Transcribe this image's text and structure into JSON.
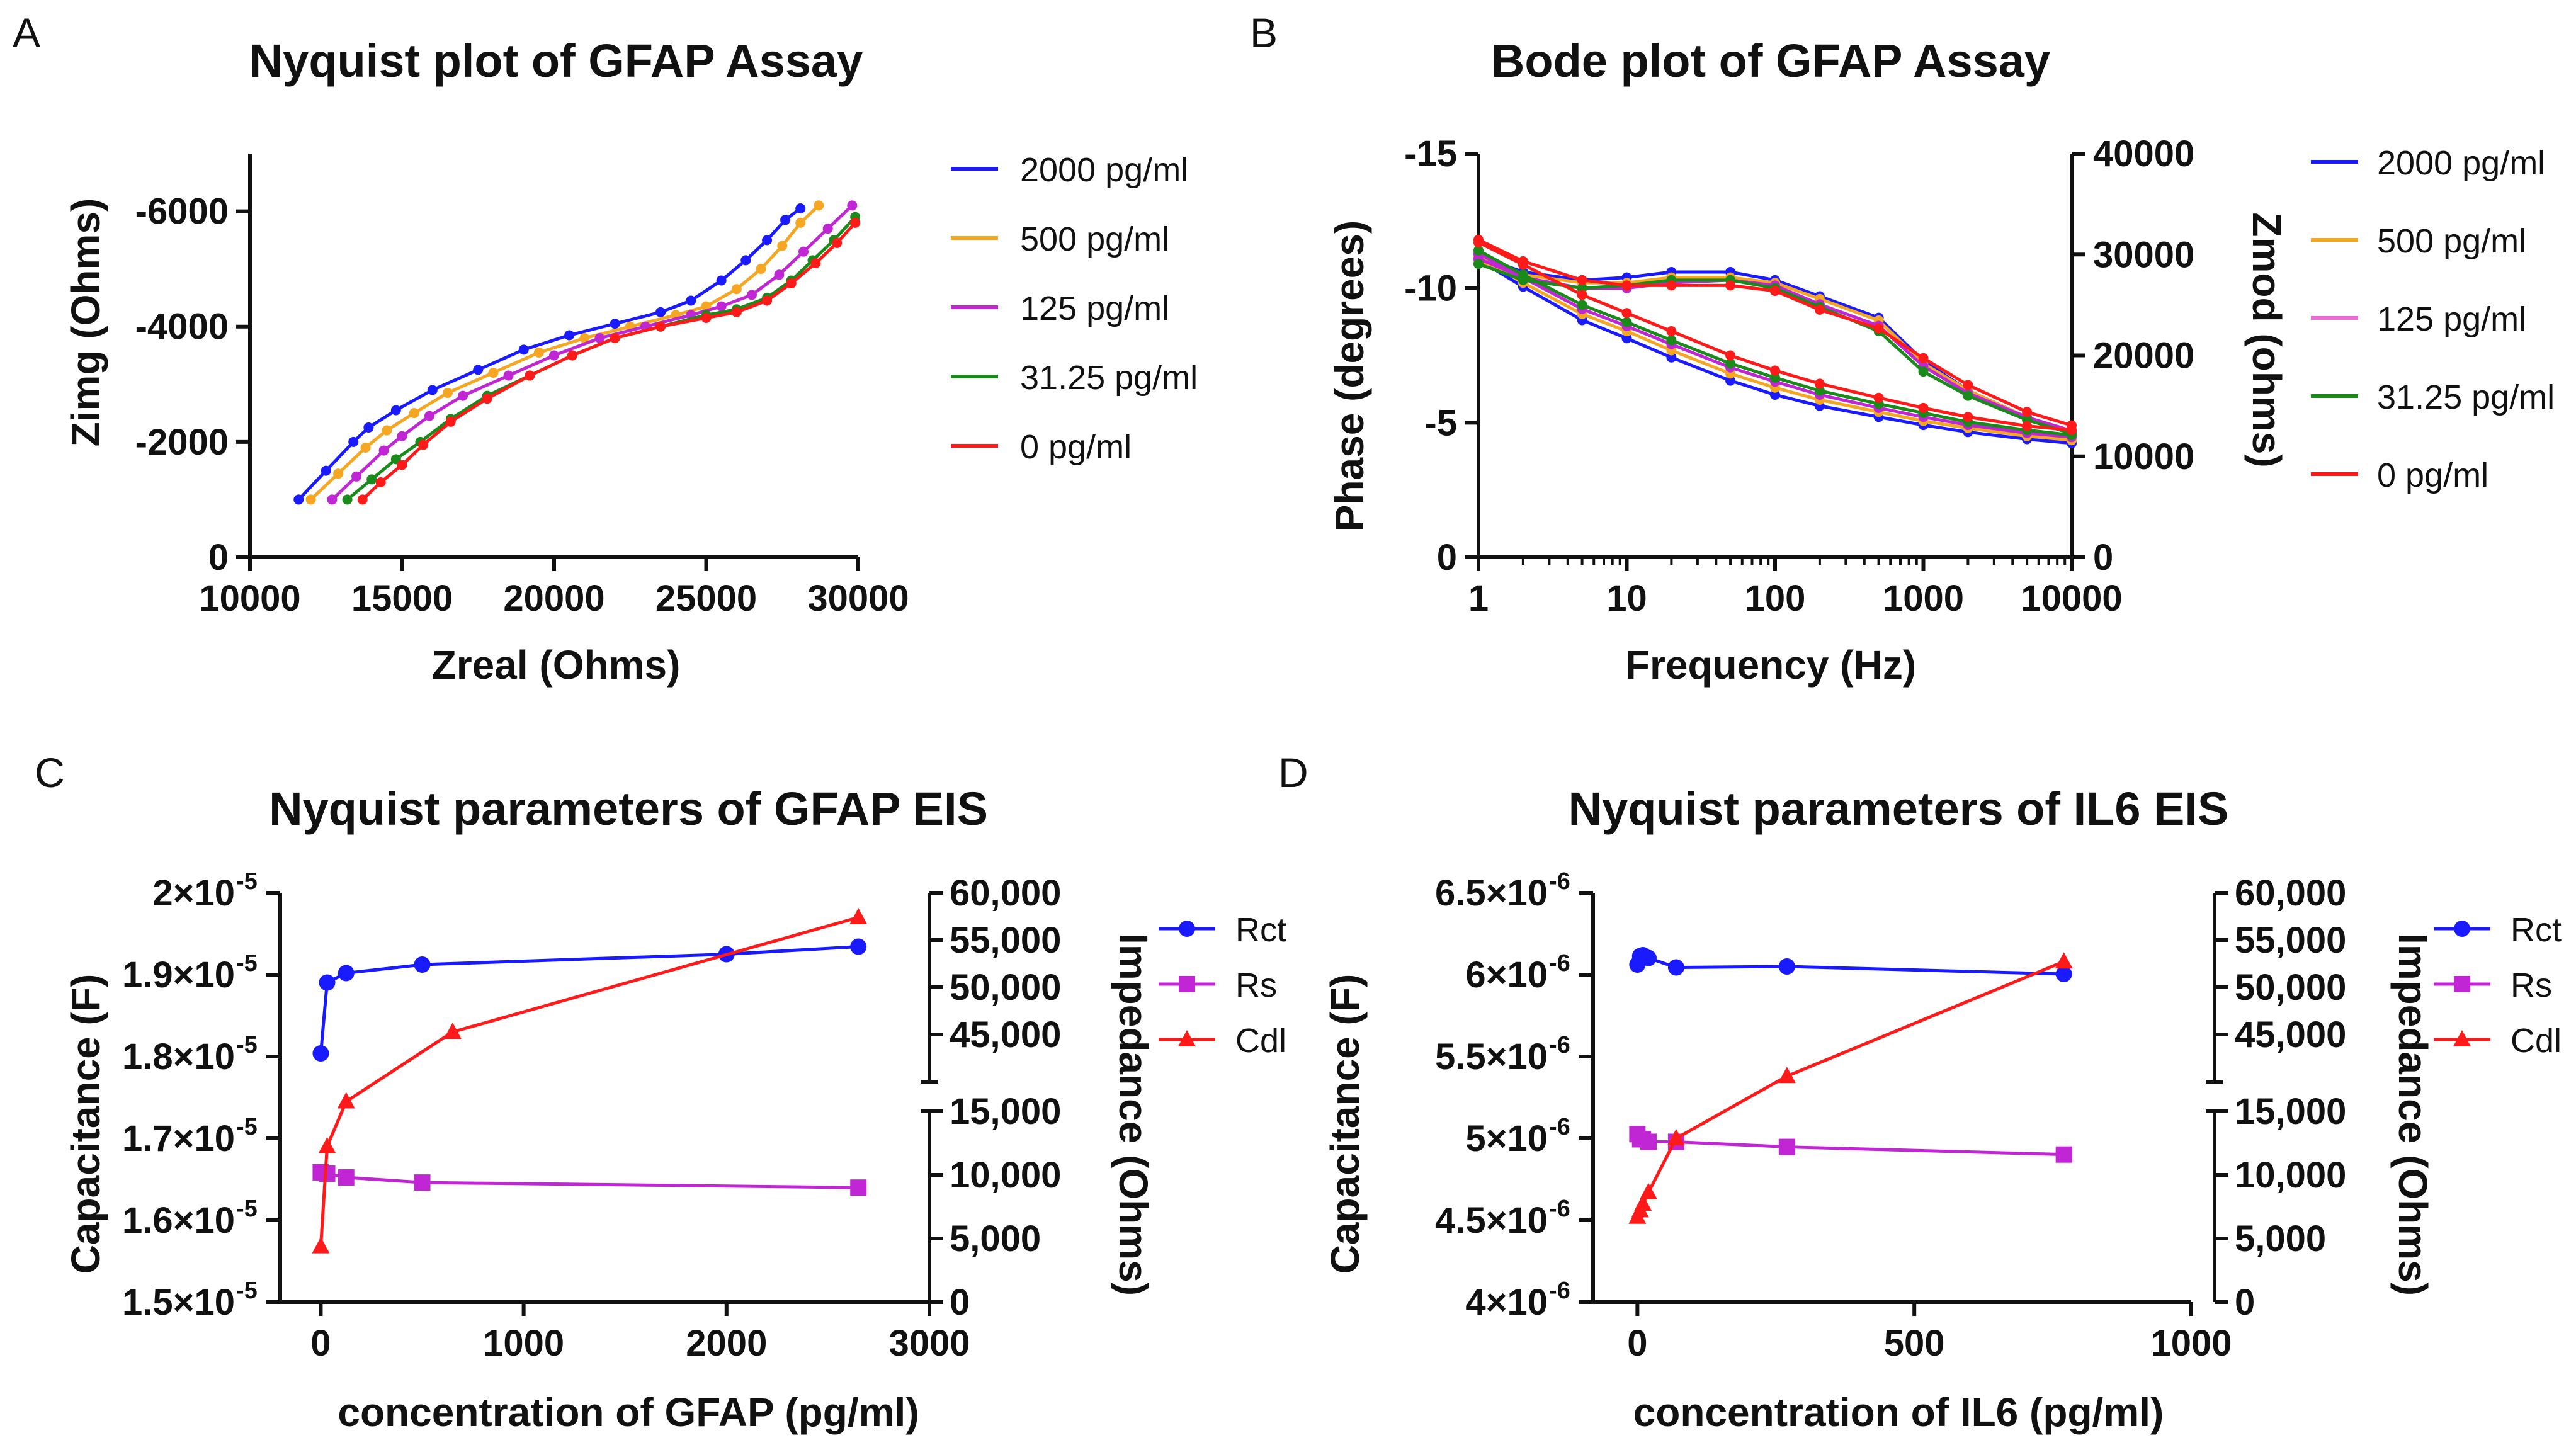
{
  "colors": {
    "blue": "#1a1aff",
    "orange": "#f5a623",
    "magenta": "#c026d3",
    "green": "#1a8a1a",
    "red": "#ff1a1a",
    "peach": "#f7b97a",
    "pink": "#ec6bd8"
  },
  "chart_data": [
    {
      "panel": "A",
      "type": "scatter",
      "title": "Nyquist plot of GFAP Assay",
      "xlabel": "Zreal (Ohms)",
      "ylabel": "Zimg (Ohms)",
      "xlim": [
        10000,
        30000
      ],
      "ylim": [
        0,
        -7000
      ],
      "xticks": [
        "10000",
        "15000",
        "20000",
        "25000",
        "30000"
      ],
      "yticks": [
        "0",
        "-2000",
        "-4000",
        "-6000"
      ],
      "legend": [
        "2000 pg/ml",
        "500 pg/ml",
        "125 pg/ml",
        "31.25 pg/ml",
        "0 pg/ml"
      ],
      "series": [
        {
          "name": "2000 pg/ml",
          "color": "#1a1aff",
          "x": [
            11600,
            12500,
            13400,
            13900,
            14800,
            16000,
            17500,
            19000,
            20500,
            22000,
            23500,
            24500,
            25500,
            26300,
            27000,
            27600,
            28100
          ],
          "y": [
            -1000,
            -1500,
            -2000,
            -2250,
            -2550,
            -2900,
            -3250,
            -3600,
            -3850,
            -4050,
            -4250,
            -4450,
            -4800,
            -5150,
            -5500,
            -5850,
            -6050
          ]
        },
        {
          "name": "500 pg/ml",
          "color": "#f5a623",
          "x": [
            12000,
            12900,
            13800,
            14500,
            15400,
            16500,
            18000,
            19500,
            21000,
            22500,
            24000,
            25000,
            26000,
            26800,
            27500,
            28100,
            28700
          ],
          "y": [
            -1000,
            -1450,
            -1900,
            -2200,
            -2500,
            -2850,
            -3200,
            -3550,
            -3800,
            -4000,
            -4200,
            -4350,
            -4650,
            -5000,
            -5400,
            -5800,
            -6100
          ]
        },
        {
          "name": "125 pg/ml",
          "color": "#c026d3",
          "x": [
            12700,
            13500,
            14400,
            15000,
            15900,
            17000,
            18500,
            20000,
            21500,
            23000,
            24500,
            25500,
            26500,
            27400,
            28200,
            29000,
            29800
          ],
          "y": [
            -1000,
            -1400,
            -1850,
            -2100,
            -2450,
            -2800,
            -3150,
            -3500,
            -3800,
            -4000,
            -4200,
            -4350,
            -4550,
            -4900,
            -5300,
            -5700,
            -6100
          ]
        },
        {
          "name": "31.25 pg/ml",
          "color": "#1a8a1a",
          "x": [
            13200,
            14000,
            14800,
            15600,
            16600,
            17800,
            19200,
            20600,
            22000,
            23500,
            25000,
            26000,
            27000,
            27800,
            28500,
            29200,
            29900
          ],
          "y": [
            -1000,
            -1350,
            -1700,
            -2000,
            -2400,
            -2800,
            -3150,
            -3500,
            -3800,
            -4000,
            -4200,
            -4300,
            -4500,
            -4800,
            -5150,
            -5500,
            -5900
          ]
        },
        {
          "name": "0 pg/ml",
          "color": "#ff1a1a",
          "x": [
            13700,
            14300,
            15000,
            15700,
            16600,
            17800,
            19200,
            20600,
            22000,
            23500,
            25000,
            26000,
            27000,
            27800,
            28600,
            29300,
            29900
          ],
          "y": [
            -1000,
            -1300,
            -1600,
            -1950,
            -2350,
            -2750,
            -3150,
            -3500,
            -3800,
            -4000,
            -4150,
            -4250,
            -4450,
            -4750,
            -5100,
            -5450,
            -5800
          ]
        }
      ]
    },
    {
      "panel": "B",
      "type": "line",
      "title": "Bode plot of GFAP Assay",
      "xlabel": "Frequency (Hz)",
      "ylabel": "Phase (degrees)",
      "y2label": "Zmod (ohms)",
      "xlim": [
        1,
        10000
      ],
      "ylim": [
        0,
        -15
      ],
      "y2lim": [
        0,
        40000
      ],
      "xticks": [
        "1",
        "10",
        "100",
        "1000",
        "10000"
      ],
      "yticks": [
        "0",
        "-5",
        "-10",
        "-15"
      ],
      "y2ticks": [
        "0",
        "10000",
        "20000",
        "30000",
        "40000"
      ],
      "legend": [
        "2000 pg/ml",
        "500 pg/ml",
        "125 pg/ml",
        "31.25 pg/ml",
        "0 pg/ml"
      ],
      "series": [
        {
          "name": "2000 pg/ml",
          "color": "#1a1aff",
          "freq": [
            1,
            2,
            5,
            10,
            20,
            50,
            100,
            200,
            500,
            1000,
            2000,
            5000,
            10000
          ],
          "phase": [
            -11.2,
            -10.6,
            -10.3,
            -10.4,
            -10.6,
            -10.6,
            -10.3,
            -9.7,
            -8.9,
            -7.3,
            -6.2,
            -5.2,
            -4.6
          ],
          "zmod": [
            29500,
            26800,
            23500,
            21700,
            19800,
            17500,
            16100,
            15000,
            13900,
            13100,
            12400,
            11700,
            11300
          ]
        },
        {
          "name": "500 pg/ml",
          "color": "#f5a623",
          "freq": [
            1,
            2,
            5,
            10,
            20,
            50,
            100,
            200,
            500,
            1000,
            2000,
            5000,
            10000
          ],
          "phase": [
            -11.0,
            -10.5,
            -10.2,
            -10.2,
            -10.4,
            -10.4,
            -10.2,
            -9.6,
            -8.8,
            -7.2,
            -6.2,
            -5.2,
            -4.7
          ],
          "zmod": [
            29800,
            27200,
            24100,
            22400,
            20500,
            18200,
            16800,
            15600,
            14400,
            13500,
            12800,
            12000,
            11600
          ]
        },
        {
          "name": "125 pg/ml",
          "color": "#c026d3",
          "freq": [
            1,
            2,
            5,
            10,
            20,
            50,
            100,
            200,
            500,
            1000,
            2000,
            5000,
            10000
          ],
          "phase": [
            -11.1,
            -10.4,
            -10.0,
            -10.0,
            -10.2,
            -10.3,
            -10.1,
            -9.4,
            -8.6,
            -7.1,
            -6.1,
            -5.2,
            -4.7
          ],
          "zmod": [
            30100,
            27700,
            24600,
            22900,
            21100,
            18800,
            17400,
            16100,
            14800,
            13900,
            13100,
            12300,
            11900
          ]
        },
        {
          "name": "31.25 pg/ml",
          "color": "#1a8a1a",
          "freq": [
            1,
            2,
            5,
            10,
            20,
            50,
            100,
            200,
            500,
            1000,
            2000,
            5000,
            10000
          ],
          "phase": [
            -10.9,
            -10.3,
            -10.0,
            -10.1,
            -10.3,
            -10.3,
            -10.0,
            -9.3,
            -8.4,
            -6.9,
            -6.0,
            -5.1,
            -4.6
          ],
          "zmod": [
            30400,
            28000,
            25000,
            23300,
            21500,
            19200,
            17800,
            16500,
            15200,
            14300,
            13400,
            12600,
            12100
          ]
        },
        {
          "name": "0 pg/ml",
          "color": "#ff1a1a",
          "freq": [
            1,
            2,
            5,
            10,
            20,
            50,
            100,
            200,
            500,
            1000,
            2000,
            5000,
            10000
          ],
          "phase": [
            -11.8,
            -11.0,
            -10.3,
            -10.1,
            -10.1,
            -10.1,
            -9.9,
            -9.2,
            -8.5,
            -7.4,
            -6.4,
            -5.4,
            -4.9
          ],
          "zmod": [
            31200,
            29000,
            26000,
            24200,
            22400,
            20000,
            18500,
            17200,
            15800,
            14800,
            13900,
            13000,
            12600
          ]
        }
      ]
    },
    {
      "panel": "C",
      "type": "line",
      "title": "Nyquist parameters of GFAP EIS",
      "xlabel": "concentration of GFAP (pg/ml)",
      "ylabel": "Capacitance (F)",
      "y2label": "Impedance (Ohms)",
      "xlim": [
        -200,
        3000
      ],
      "ylim": [
        1.5e-05,
        2e-05
      ],
      "y2_segments": [
        [
          0,
          15000
        ],
        [
          40000,
          60000
        ]
      ],
      "xticks": [
        "0",
        "1000",
        "2000",
        "3000"
      ],
      "yticks": [
        "2×10",
        "1.9×10",
        "1.8×10",
        "1.7×10",
        "1.6×10",
        "1.5×10"
      ],
      "ytick_exp": "-5",
      "y2ticks": [
        "60,000",
        "55,000",
        "50,000",
        "45,000",
        "15,000",
        "10,000",
        "5,000",
        "0"
      ],
      "legend": [
        "Rct",
        "Rs",
        "Cdl"
      ],
      "series": [
        {
          "name": "Rct",
          "color": "#1a1aff",
          "axis": "right",
          "x": [
            0,
            31.25,
            125,
            500,
            2000,
            2650
          ],
          "y": [
            43000,
            50500,
            51500,
            52400,
            53500,
            54300
          ]
        },
        {
          "name": "Rs",
          "color": "#c026d3",
          "axis": "right",
          "x": [
            0,
            31.25,
            125,
            500,
            2650
          ],
          "y": [
            10200,
            10100,
            9800,
            9400,
            9000
          ]
        },
        {
          "name": "Cdl",
          "color": "#ff1a1a",
          "axis": "left",
          "x": [
            0,
            31.25,
            125,
            650,
            2650
          ],
          "y": [
            1.568e-05,
            1.69e-05,
            1.745e-05,
            1.83e-05,
            1.97e-05
          ]
        }
      ]
    },
    {
      "panel": "D",
      "type": "line",
      "title": "Nyquist parameters of IL6 EIS",
      "xlabel": "concentration of IL6 (pg/ml)",
      "ylabel": "Capacitance (F)",
      "y2label": "Impedance (Ohms)",
      "xlim": [
        -80,
        1000
      ],
      "ylim": [
        4e-06,
        6.5e-06
      ],
      "y2_segments": [
        [
          0,
          15000
        ],
        [
          40000,
          60000
        ]
      ],
      "xticks": [
        "0",
        "500",
        "1000"
      ],
      "yticks": [
        "6.5×10",
        "6×10",
        "5.5×10",
        "5×10",
        "4.5×10",
        "4×10"
      ],
      "ytick_exp": "-6",
      "y2ticks": [
        "60,000",
        "55,000",
        "50,000",
        "45,000",
        "15,000",
        "10,000",
        "5,000",
        "0"
      ],
      "legend": [
        "Rct",
        "Rs",
        "Cdl"
      ],
      "series": [
        {
          "name": "Rct",
          "color": "#1a1aff",
          "axis": "right",
          "x": [
            0,
            5,
            10,
            20,
            70,
            270,
            770
          ],
          "y": [
            52400,
            53300,
            53400,
            53100,
            52100,
            52200,
            51400
          ]
        },
        {
          "name": "Rs",
          "color": "#c026d3",
          "axis": "right",
          "x": [
            0,
            5,
            10,
            20,
            70,
            270,
            770
          ],
          "y": [
            13200,
            12800,
            12800,
            12600,
            12600,
            12200,
            11600
          ]
        },
        {
          "name": "Cdl",
          "color": "#ff1a1a",
          "axis": "left",
          "x": [
            0,
            5,
            10,
            20,
            70,
            270,
            770
          ],
          "y": [
            4.52e-06,
            4.56e-06,
            4.6e-06,
            4.67e-06,
            5e-06,
            5.38e-06,
            6.08e-06
          ]
        }
      ]
    }
  ]
}
